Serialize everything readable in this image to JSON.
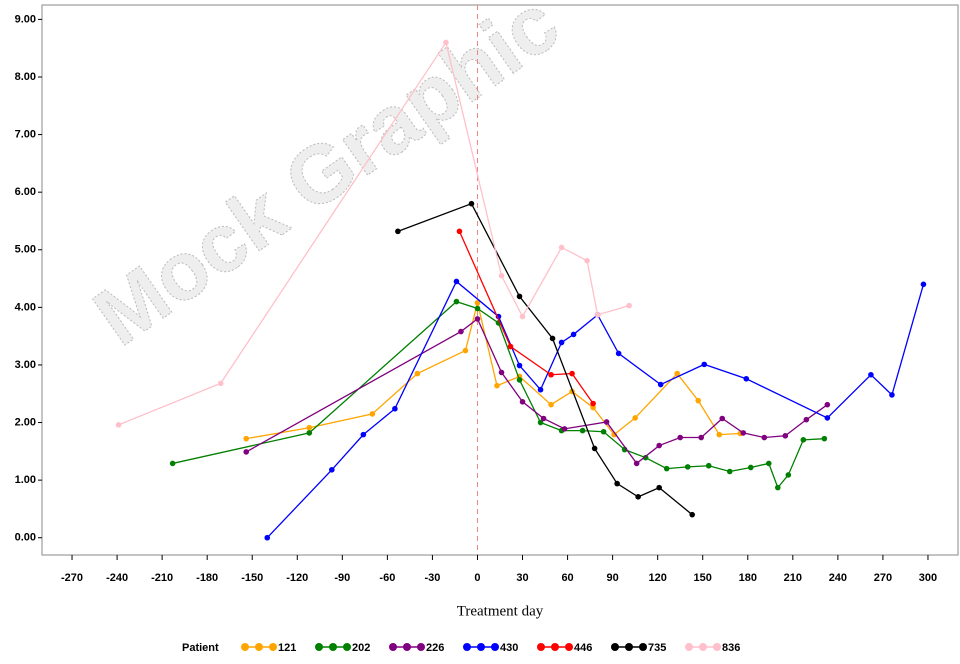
{
  "chart_data": {
    "type": "line",
    "watermark": "Mock Graphic",
    "x_label": "Treatment day",
    "legend_title": "Patient",
    "xlim": [
      -290,
      320
    ],
    "ylim": [
      -0.3,
      9.25
    ],
    "xticks": [
      -270,
      -240,
      -210,
      -180,
      -150,
      -120,
      -90,
      -60,
      -30,
      0,
      30,
      60,
      90,
      120,
      150,
      180,
      210,
      240,
      270,
      300
    ],
    "yticks": [
      {
        "value": 0,
        "label": "0.00"
      },
      {
        "value": 1,
        "label": "1.00"
      },
      {
        "value": 2,
        "label": "2.00"
      },
      {
        "value": 3,
        "label": "3.00"
      },
      {
        "value": 4,
        "label": "4.00"
      },
      {
        "value": 5,
        "label": "5.00"
      },
      {
        "value": 6,
        "label": "6.00"
      },
      {
        "value": 7,
        "label": "7.00"
      },
      {
        "value": 8,
        "label": "8.00"
      },
      {
        "value": 9,
        "label": "9.00"
      }
    ],
    "reference_line_x": 0,
    "series": [
      {
        "name": "121",
        "color": "#ffa500",
        "x": [
          -154,
          -112,
          -70,
          -40,
          -8,
          0,
          13,
          28,
          49,
          63,
          77,
          91,
          105,
          133,
          147,
          161,
          175
        ],
        "values": [
          1.72,
          1.91,
          2.15,
          2.85,
          3.25,
          4.08,
          2.64,
          2.8,
          2.31,
          2.54,
          2.26,
          1.79,
          2.08,
          2.85,
          2.38,
          1.79,
          1.81
        ]
      },
      {
        "name": "202",
        "color": "#008000",
        "x": [
          -203,
          -112,
          -14,
          0,
          14,
          28,
          42,
          56,
          70,
          84,
          98,
          112,
          126,
          140,
          154,
          168,
          182,
          194,
          200,
          207,
          217,
          231
        ],
        "values": [
          1.29,
          1.82,
          4.1,
          3.98,
          3.73,
          2.74,
          2.0,
          1.86,
          1.86,
          1.84,
          1.53,
          1.39,
          1.2,
          1.23,
          1.25,
          1.15,
          1.22,
          1.29,
          0.87,
          1.09,
          1.7,
          1.72
        ]
      },
      {
        "name": "226",
        "color": "#800080",
        "x": [
          -154,
          -11,
          0,
          16,
          30,
          44,
          58,
          86,
          106,
          121,
          135,
          149,
          163,
          177,
          191,
          205,
          219,
          233
        ],
        "values": [
          1.49,
          3.58,
          3.8,
          2.87,
          2.36,
          2.07,
          1.89,
          2.01,
          1.29,
          1.6,
          1.74,
          1.74,
          2.07,
          1.82,
          1.74,
          1.77,
          2.05,
          2.31
        ]
      },
      {
        "name": "430",
        "color": "#0000ff",
        "x": [
          -140,
          -97,
          -76,
          -55,
          -14,
          14,
          28,
          42,
          56,
          64,
          80,
          94,
          122,
          151,
          179,
          233,
          262,
          276,
          297
        ],
        "values": [
          0.0,
          1.18,
          1.79,
          2.24,
          4.45,
          3.84,
          2.99,
          2.57,
          3.39,
          3.53,
          3.87,
          3.2,
          2.66,
          3.01,
          2.76,
          2.08,
          2.83,
          2.48,
          4.4
        ]
      },
      {
        "name": "446",
        "color": "#ff0000",
        "x": [
          -12,
          22,
          49,
          63,
          77
        ],
        "values": [
          5.32,
          3.32,
          2.83,
          2.85,
          2.33
        ]
      },
      {
        "name": "735",
        "color": "#000000",
        "x": [
          -53,
          -4,
          28,
          50,
          78,
          93,
          107,
          121,
          143
        ],
        "values": [
          5.32,
          5.8,
          4.19,
          3.46,
          1.55,
          0.94,
          0.71,
          0.87,
          0.4
        ]
      },
      {
        "name": "836",
        "color": "#ffc0cb",
        "x": [
          -239,
          -171,
          -21,
          16,
          30,
          56,
          73,
          80,
          101
        ],
        "values": [
          1.96,
          2.68,
          8.6,
          4.55,
          3.84,
          5.04,
          4.81,
          3.87,
          4.03
        ]
      }
    ]
  }
}
